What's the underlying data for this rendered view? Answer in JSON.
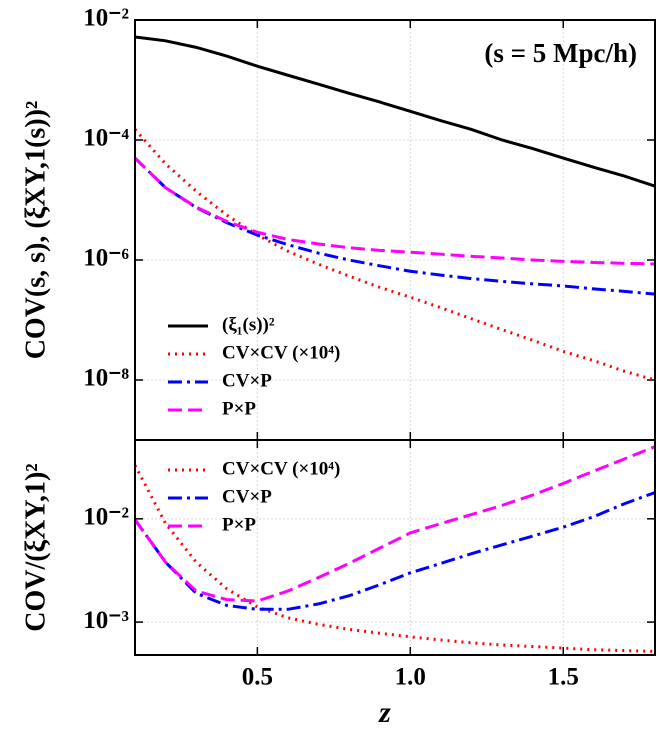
{
  "chart_data": [
    {
      "type": "line",
      "ylabel": "COV(s, s),  (ξXY,1(s))²",
      "annotation": "(s = 5 Mpc/h)",
      "ylog": true,
      "grid": true,
      "legend": "lower left",
      "xlim": [
        0.1,
        1.8
      ],
      "ylim": [
        1e-09,
        0.01
      ],
      "yticks": [
        {
          "value": 0.01,
          "label": "10⁻²"
        },
        {
          "value": 0.0001,
          "label": "10⁻⁴"
        },
        {
          "value": 1e-06,
          "label": "10⁻⁶"
        },
        {
          "value": 1e-08,
          "label": "10⁻⁸"
        }
      ],
      "x": [
        0.1,
        0.2,
        0.3,
        0.4,
        0.5,
        0.6,
        0.7,
        0.8,
        0.9,
        1.0,
        1.1,
        1.2,
        1.3,
        1.4,
        1.5,
        1.6,
        1.7,
        1.8
      ],
      "series": [
        {
          "name": "(ξ₁(s))²",
          "color": "#000000",
          "linestyle": "solid",
          "values": [
            0.0052,
            0.0045,
            0.0035,
            0.0025,
            0.0017,
            0.0012,
            0.00085,
            0.0006,
            0.00043,
            0.0003,
            0.00021,
            0.00015,
            0.0001,
            7.2e-05,
            5e-05,
            3.5e-05,
            2.5e-05,
            1.7e-05
          ]
        },
        {
          "name": "CV×CV (×10⁴)",
          "color": "#ff0000",
          "linestyle": "dotted",
          "values": [
            0.00015,
            4e-05,
            1.4e-05,
            5.6e-06,
            2.6e-06,
            1.4e-06,
            8.5e-07,
            5.4e-07,
            3.5e-07,
            2.4e-07,
            1.6e-07,
            1.05e-07,
            6.9e-08,
            4.6e-08,
            3e-08,
            2.1e-08,
            1.4e-08,
            1e-08
          ]
        },
        {
          "name": "CV×P",
          "color": "#0000ff",
          "linestyle": "dashdot",
          "values": [
            5e-05,
            1.6e-05,
            7.5e-06,
            4.2e-06,
            2.6e-06,
            1.8e-06,
            1.3e-06,
            1e-06,
            8e-07,
            6.5e-07,
            5.6e-07,
            4.9e-07,
            4.4e-07,
            4e-07,
            3.7e-07,
            3.3e-07,
            3e-07,
            2.7e-07
          ]
        },
        {
          "name": "P×P",
          "color": "#ff00ff",
          "linestyle": "dashed",
          "values": [
            5e-05,
            1.6e-05,
            7.6e-06,
            4.4e-06,
            2.9e-06,
            2.2e-06,
            1.85e-06,
            1.6e-06,
            1.45e-06,
            1.35e-06,
            1.25e-06,
            1.15e-06,
            1.08e-06,
            1e-06,
            9.5e-07,
            9.1e-07,
            8.8e-07,
            8.6e-07
          ]
        }
      ]
    },
    {
      "type": "line",
      "ylabel": "COV/(ξXY,1)²",
      "xlabel": "z",
      "ylog": true,
      "grid": true,
      "legend": "upper left",
      "xlim": [
        0.1,
        1.8
      ],
      "ylim": [
        0.00048,
        0.058
      ],
      "xticks": [
        0.5,
        {
          "value": 1,
          "label": "1.0"
        },
        1.5
      ],
      "yticks": [
        {
          "value": 0.01,
          "label": "10⁻²"
        },
        {
          "value": 0.001,
          "label": "10⁻³"
        }
      ],
      "x": [
        0.1,
        0.2,
        0.3,
        0.4,
        0.5,
        0.6,
        0.7,
        0.8,
        0.9,
        1.0,
        1.1,
        1.2,
        1.3,
        1.4,
        1.5,
        1.6,
        1.7,
        1.8
      ],
      "series": [
        {
          "name": "CV×CV (×10⁴)",
          "color": "#ff0000",
          "linestyle": "dotted",
          "values": [
            0.033,
            0.009,
            0.0038,
            0.0021,
            0.0014,
            0.0011,
            0.00095,
            0.00085,
            0.00078,
            0.00072,
            0.00067,
            0.00063,
            0.0006,
            0.00058,
            0.00056,
            0.00054,
            0.00053,
            0.00052
          ]
        },
        {
          "name": "CV×P",
          "color": "#0000ff",
          "linestyle": "dashdot",
          "values": [
            0.0098,
            0.0038,
            0.0019,
            0.00145,
            0.00133,
            0.00133,
            0.0015,
            0.0018,
            0.0023,
            0.003,
            0.0037,
            0.0046,
            0.0056,
            0.0068,
            0.0083,
            0.0105,
            0.014,
            0.018
          ]
        },
        {
          "name": "P×P",
          "color": "#ff00ff",
          "linestyle": "dashed",
          "values": [
            0.0098,
            0.0038,
            0.002,
            0.00165,
            0.0016,
            0.002,
            0.0027,
            0.0037,
            0.0052,
            0.0073,
            0.009,
            0.011,
            0.0135,
            0.017,
            0.022,
            0.029,
            0.038,
            0.05
          ]
        }
      ]
    }
  ]
}
